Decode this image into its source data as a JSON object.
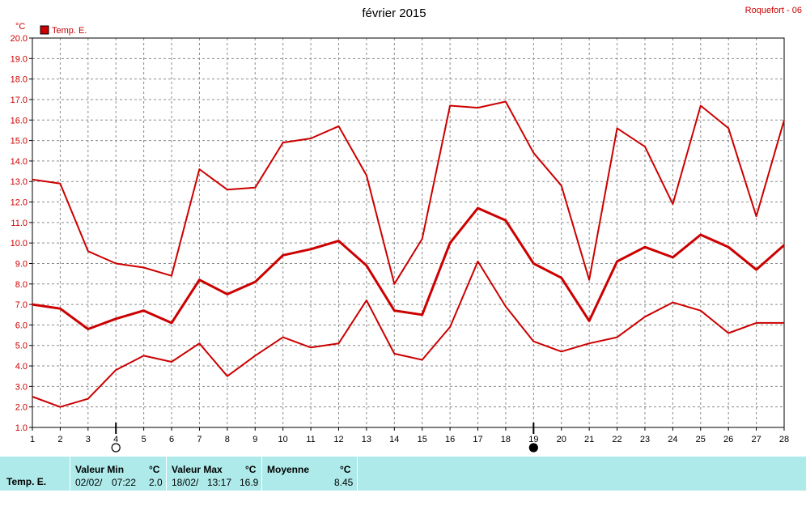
{
  "title": "février 2015",
  "station": "Roquefort - 06",
  "colors": {
    "series": "#cc0000",
    "grid": "#8c8c8c",
    "panel": "#aeeaea"
  },
  "chart_data": {
    "type": "line",
    "title": "février 2015",
    "ylabel": "°C",
    "ylim": [
      1.0,
      20.0
    ],
    "ytick_step": 1.0,
    "x": [
      1,
      2,
      3,
      4,
      5,
      6,
      7,
      8,
      9,
      10,
      11,
      12,
      13,
      14,
      15,
      16,
      17,
      18,
      19,
      20,
      21,
      22,
      23,
      24,
      25,
      26,
      27,
      28
    ],
    "legend": {
      "label": "Temp. E.",
      "placement": "top-left"
    },
    "grid": true,
    "series": [
      {
        "role": "max",
        "values": [
          13.1,
          12.9,
          9.6,
          9.0,
          8.8,
          8.4,
          13.6,
          12.6,
          12.7,
          14.9,
          15.1,
          15.7,
          13.3,
          8.0,
          10.2,
          16.7,
          16.6,
          16.9,
          14.4,
          12.8,
          8.2,
          15.6,
          14.7,
          11.9,
          16.7,
          15.6,
          11.3,
          16.0
        ]
      },
      {
        "role": "mean",
        "values": [
          7.0,
          6.8,
          5.8,
          6.3,
          6.7,
          6.1,
          8.2,
          7.5,
          8.1,
          9.4,
          9.7,
          10.1,
          8.9,
          6.7,
          6.5,
          10.0,
          11.7,
          11.1,
          9.0,
          8.3,
          6.2,
          9.1,
          9.8,
          9.3,
          10.4,
          9.8,
          8.7,
          9.9
        ]
      },
      {
        "role": "min",
        "values": [
          2.5,
          2.0,
          2.4,
          3.8,
          4.5,
          4.2,
          5.1,
          3.5,
          4.5,
          5.4,
          4.9,
          5.1,
          7.2,
          4.6,
          4.3,
          5.9,
          9.1,
          6.9,
          5.2,
          4.7,
          5.1,
          5.4,
          6.4,
          7.1,
          6.7,
          5.6,
          6.1,
          6.1
        ]
      }
    ],
    "moon_phases": [
      {
        "day": 4,
        "phase": "full"
      },
      {
        "day": 19,
        "phase": "new"
      }
    ]
  },
  "summary": {
    "series_label": "Temp. E.",
    "min": {
      "header": "Valeur Min",
      "unit": "°C",
      "date": "02/02/",
      "time": "07:22",
      "value": "2.0"
    },
    "max": {
      "header": "Valeur Max",
      "unit": "°C",
      "date": "18/02/",
      "time": "13:17",
      "value": "16.9"
    },
    "mean": {
      "header": "Moyenne",
      "unit": "°C",
      "value": "8.45"
    }
  }
}
